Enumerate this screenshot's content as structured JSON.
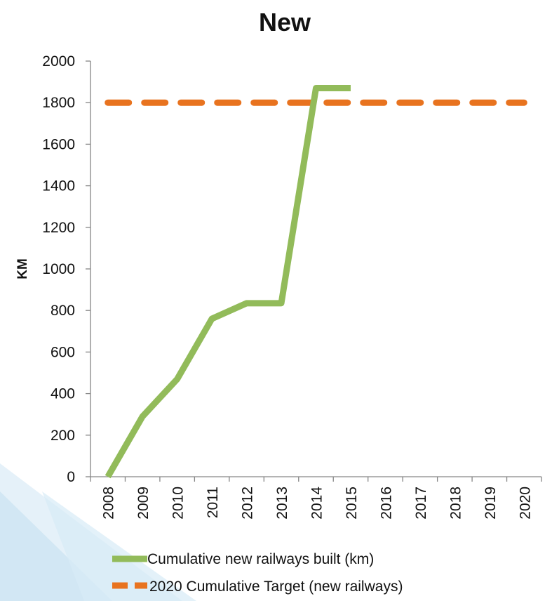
{
  "chart_data": {
    "type": "line",
    "title": "New",
    "xlabel": "",
    "ylabel": "KM",
    "categories": [
      "2008",
      "2009",
      "2010",
      "2011",
      "2012",
      "2013",
      "2014",
      "2015",
      "2016",
      "2017",
      "2018",
      "2019",
      "2020"
    ],
    "ylim": [
      0,
      2000
    ],
    "yticks": [
      "0",
      "200",
      "400",
      "600",
      "800",
      "1000",
      "1200",
      "1400",
      "1600",
      "1800",
      "2000"
    ],
    "grid": false,
    "legend_position": "bottom",
    "series": [
      {
        "name": "Cumulative new railways built (km)",
        "style": "solid",
        "color": "#92bb5a",
        "values": [
          0,
          290,
          470,
          760,
          835,
          835,
          1870,
          1870,
          null,
          null,
          null,
          null,
          null
        ]
      },
      {
        "name": "2020 Cumulative Target (new railways)",
        "style": "dashed",
        "color": "#e8731f",
        "values": [
          1800,
          1800,
          1800,
          1800,
          1800,
          1800,
          1800,
          1800,
          1800,
          1800,
          1800,
          1800,
          1800
        ]
      }
    ]
  },
  "colors": {
    "axis": "#868686",
    "text": "#111111",
    "background_accent": "#cfe6f3"
  }
}
